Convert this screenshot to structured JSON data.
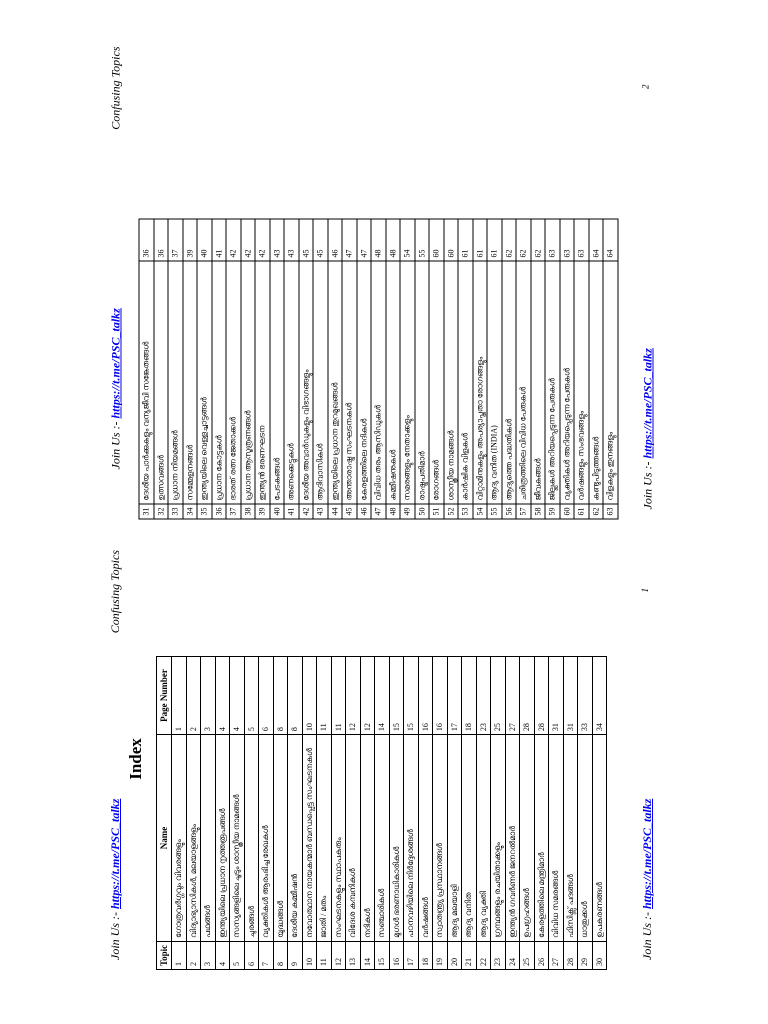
{
  "pages": [
    {
      "header": {
        "join": "Join Us :-",
        "link": "https://t.me/PSC_talkz",
        "topic": "Confusing Topics"
      },
      "title": "Index",
      "table": {
        "columns": [
          "Topic",
          "Name",
          "Page Number"
        ],
        "rows": [
          [
            1,
            "ഗോത്രവർഗ്ഗവും വിവരങ്ങളും",
            1
          ],
          [
            2,
            "വിദ്യാഭ്യാസികൾ, മലയാളങ്ങളും",
            2
          ],
          [
            3,
            "പഥങ്ങൾ",
            3
          ],
          [
            4,
            "ഇന്ത്യയിലെ പ്രധാന നൃത്തരൂപങ്ങൾ",
            4
          ],
          [
            5,
            "സസ്യങ്ങളിലെ ചൂടും ശാസ്ത്രീയ നാമങ്ങൾ",
            4
          ],
          [
            6,
            "ചുരങ്ങൾ",
            5
          ],
          [
            7,
            "വ്യക്തികൾ ആരംഭിച്ച രേഖകൾ",
            6
          ],
          [
            8,
            "യുദ്ധങ്ങൾ",
            8
          ],
          [
            9,
            "ദേശീയ കമ്മീഷൻ",
            8
          ],
          [
            10,
            "നവോത്ഥാന നായകന്മാർ ബന്ധപ്പെട്ട സംഘടനകൾ",
            10
          ],
          [
            11,
            "ജാതി / മതം",
            11
          ],
          [
            12,
            "സംഘടനകളും സ്ഥാപകരും",
            11
          ],
          [
            13,
            "വിദേശ കമ്പനികൾ",
            12
          ],
          [
            14,
            "നദികൾ",
            12
          ],
          [
            15,
            "സഞ്ചാരികൾ",
            14
          ],
          [
            16,
            "മുഗൾ ഭരണാധികാരികൾ",
            15
          ],
          [
            17,
            "പഠനവഴിയിലെ നിർദ്ദേശങ്ങൾ",
            15
          ],
          [
            18,
            "വർഷങ്ങൾ",
            16
          ],
          [
            19,
            "സ്വാതന്ത്ര്യ പ്രസ്ഥാനങ്ങൾ",
            16
          ],
          [
            20,
            "ആദ്യ മലയാളി",
            17
          ],
          [
            21,
            "ആദ്യ വനിത",
            18
          ],
          [
            22,
            "ആദ്യ വ്യക്തി",
            23
          ],
          [
            23,
            "ഗ്രന്ഥങ്ങളും രചയിതാക്കളും",
            25
          ],
          [
            24,
            "ഇന്ത്യൻ ഗവർണർ ജനറൽമാർ",
            27
          ],
          [
            25,
            "ഉപഗ്രഹങ്ങൾ",
            28
          ],
          [
            26,
            "കേരളത്തിലെ മന്ത്രിമാർ",
            28
          ],
          [
            27,
            "വിവിധ സമരങ്ങൾ",
            31
          ],
          [
            28,
            "ഫിസിക്സ് പദങ്ങൾ",
            31
          ],
          [
            29,
            "ധാതുക്കൾ",
            33
          ],
          [
            30,
            "ഉപകരണങ്ങൾ",
            34
          ]
        ]
      },
      "footer": {
        "join": "Join Us :-",
        "link": "https://t.me/PSC_talkz",
        "page": 1
      }
    },
    {
      "header": {
        "join": "Join Us :-",
        "link": "https://t.me/PSC_talkz",
        "topic": "Confusing Topics"
      },
      "table": {
        "rows": [
          [
            31,
            "ദേശീയ പാർക്കുകളും വന്യജീവി സങ്കേതങ്ങൾ",
            36
          ],
          [
            32,
            "ഉത്സവങ്ങൾ",
            36
          ],
          [
            33,
            "പ്രധാന നിയമങ്ങൾ",
            37
          ],
          [
            34,
            "സമ്മേളനങ്ങൾ",
            39
          ],
          [
            35,
            "ഇന്ത്യയിലെ വെള്ളച്ചാട്ടങ്ങൾ",
            40
          ],
          [
            36,
            "പ്രധാന കോട്ടകൾ",
            41
          ],
          [
            37,
            "ഭാരത് രത്ന ജേതാക്കൾ",
            42
          ],
          [
            38,
            "പ്രധാന ആസൂത്രണങ്ങൾ",
            42
          ],
          [
            39,
            "ഇന്ത്യൻ ഭരണഘടന",
            42
          ],
          [
            40,
            "പേടകങ്ങൾ",
            43
          ],
          [
            41,
            "അണക്കെട്ടുകൾ",
            43
          ],
          [
            42,
            "ദേശീയ അവാർഡുകളും വിഭാഗങ്ങളും",
            45
          ],
          [
            43,
            "ആദിവാസികൾ",
            45
          ],
          [
            44,
            "ഇന്ത്യയിലെ പ്രധാന തുറമുഖങ്ങൾ",
            46
          ],
          [
            45,
            "അന്താരാഷ്ട്ര സംഘടനകൾ",
            47
          ],
          [
            46,
            "കേരളത്തിലെ നദികൾ",
            47
          ],
          [
            47,
            "വിവിധ തരം ആസിഡുകൾ",
            48
          ],
          [
            48,
            "കമ്മീഷനുകൾ",
            48
          ],
          [
            49,
            "സമരങ്ങളും നേതാക്കളും",
            54
          ],
          [
            50,
            "രാഷ്ട്രപതിമാർ",
            55
          ],
          [
            51,
            "രോഗങ്ങൾ",
            60
          ],
          [
            52,
            "ശാസ്ത്രീയ നാമങ്ങൾ",
            60
          ],
          [
            53,
            "കാർഷിക വിളകൾ",
            61
          ],
          [
            54,
            "വിറ്റാമിനുകളും അപര്യാപ്തതാ രോഗങ്ങളും",
            61
          ],
          [
            55,
            "ആദ്യ വനിത (INDIA)",
            61
          ],
          [
            56,
            "ആദ്യത്തെ പദ്ധതികൾ",
            62
          ],
          [
            57,
            "ചരിത്രത്തിലെ വിവിധ പേരുകൾ",
            62
          ],
          [
            58,
            "ജീവകങ്ങൾ",
            62
          ],
          [
            59,
            "ജില്ലകൾ അറിയപ്പെടുന്ന പേരുകൾ",
            63
          ],
          [
            60,
            "വ്യക്തികൾ അറിയപ്പെടുന്ന പേരുകൾ",
            63
          ],
          [
            61,
            "വർഷങ്ങളും സംഭവങ്ങളും",
            63
          ],
          [
            62,
            "കണ്ടുപിടുത്തങ്ങൾ",
            64
          ],
          [
            63,
            "വിളകളും ഇനങ്ങളും",
            64
          ]
        ]
      },
      "footer": {
        "join": "Join Us :-",
        "link": "https://t.me/PSC_talkz",
        "page": 2
      }
    }
  ]
}
